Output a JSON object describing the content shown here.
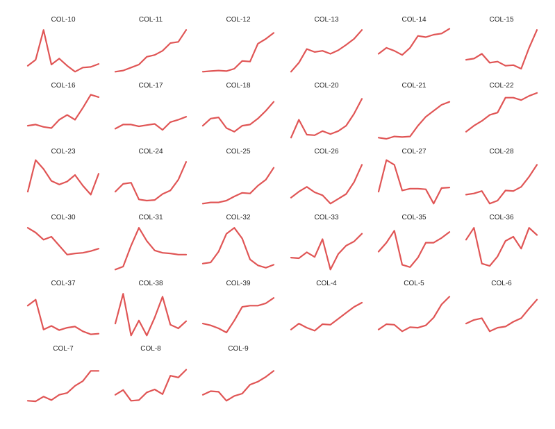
{
  "chart_data": {
    "type": "line",
    "layout": "small-multiples",
    "grid": false,
    "line_color": "#e05555",
    "panels": [
      {
        "title": "COL-10",
        "values": [
          0.2,
          0.3,
          0.8,
          0.22,
          0.32,
          0.2,
          0.1,
          0.17,
          0.18,
          0.23
        ]
      },
      {
        "title": "COL-11",
        "values": [
          0.1,
          0.12,
          0.17,
          0.22,
          0.35,
          0.38,
          0.45,
          0.58,
          0.6,
          0.8
        ]
      },
      {
        "title": "COL-12",
        "values": [
          0.1,
          0.11,
          0.12,
          0.11,
          0.15,
          0.28,
          0.27,
          0.57,
          0.65,
          0.75
        ]
      },
      {
        "title": "COL-13",
        "values": [
          0.1,
          0.25,
          0.48,
          0.43,
          0.45,
          0.4,
          0.46,
          0.55,
          0.65,
          0.8
        ]
      },
      {
        "title": "COL-14",
        "values": [
          0.4,
          0.5,
          0.45,
          0.38,
          0.5,
          0.7,
          0.68,
          0.72,
          0.74,
          0.82
        ]
      },
      {
        "title": "COL-15",
        "values": [
          0.3,
          0.32,
          0.4,
          0.25,
          0.27,
          0.2,
          0.21,
          0.15,
          0.5,
          0.8
        ]
      },
      {
        "title": "COL-16",
        "values": [
          0.3,
          0.32,
          0.28,
          0.26,
          0.4,
          0.48,
          0.4,
          0.6,
          0.82,
          0.78
        ]
      },
      {
        "title": "COL-17",
        "values": [
          0.25,
          0.32,
          0.32,
          0.29,
          0.31,
          0.33,
          0.23,
          0.36,
          0.4,
          0.45
        ]
      },
      {
        "title": "COL-18",
        "values": [
          0.3,
          0.42,
          0.44,
          0.26,
          0.2,
          0.3,
          0.32,
          0.42,
          0.55,
          0.7
        ]
      },
      {
        "title": "COL-20",
        "values": [
          0.1,
          0.4,
          0.15,
          0.14,
          0.21,
          0.16,
          0.21,
          0.3,
          0.5,
          0.75
        ]
      },
      {
        "title": "COL-21",
        "values": [
          0.1,
          0.08,
          0.12,
          0.11,
          0.12,
          0.3,
          0.45,
          0.55,
          0.65,
          0.7
        ]
      },
      {
        "title": "COL-22",
        "values": [
          0.2,
          0.3,
          0.38,
          0.48,
          0.52,
          0.77,
          0.77,
          0.73,
          0.8,
          0.85
        ]
      },
      {
        "title": "COL-23",
        "values": [
          0.3,
          0.83,
          0.68,
          0.48,
          0.42,
          0.47,
          0.58,
          0.4,
          0.25,
          0.6
        ]
      },
      {
        "title": "COL-24",
        "values": [
          0.3,
          0.43,
          0.45,
          0.17,
          0.15,
          0.16,
          0.26,
          0.32,
          0.5,
          0.8
        ]
      },
      {
        "title": "COL-25",
        "values": [
          0.1,
          0.12,
          0.12,
          0.15,
          0.22,
          0.28,
          0.27,
          0.4,
          0.5,
          0.7
        ]
      },
      {
        "title": "COL-26",
        "values": [
          0.2,
          0.3,
          0.38,
          0.29,
          0.24,
          0.1,
          0.18,
          0.26,
          0.46,
          0.75
        ]
      },
      {
        "title": "COL-27",
        "values": [
          0.3,
          0.83,
          0.75,
          0.32,
          0.35,
          0.35,
          0.34,
          0.1,
          0.36,
          0.37
        ]
      },
      {
        "title": "COL-28",
        "values": [
          0.25,
          0.27,
          0.31,
          0.1,
          0.15,
          0.32,
          0.31,
          0.38,
          0.55,
          0.75
        ]
      },
      {
        "title": "COL-30",
        "values": [
          0.8,
          0.72,
          0.6,
          0.65,
          0.5,
          0.35,
          0.37,
          0.38,
          0.41,
          0.45
        ]
      },
      {
        "title": "COL-31",
        "values": [
          0.1,
          0.15,
          0.5,
          0.8,
          0.58,
          0.42,
          0.38,
          0.37,
          0.35,
          0.35
        ]
      },
      {
        "title": "COL-32",
        "values": [
          0.2,
          0.22,
          0.4,
          0.7,
          0.8,
          0.62,
          0.27,
          0.17,
          0.13,
          0.18
        ]
      },
      {
        "title": "COL-33",
        "values": [
          0.3,
          0.29,
          0.39,
          0.31,
          0.61,
          0.1,
          0.36,
          0.5,
          0.57,
          0.7
        ]
      },
      {
        "title": "COL-35",
        "values": [
          0.4,
          0.55,
          0.75,
          0.18,
          0.14,
          0.3,
          0.55,
          0.55,
          0.63,
          0.73
        ]
      },
      {
        "title": "COL-36",
        "values": [
          0.6,
          0.8,
          0.2,
          0.16,
          0.32,
          0.58,
          0.65,
          0.45,
          0.8,
          0.68
        ]
      },
      {
        "title": "COL-37",
        "values": [
          0.6,
          0.7,
          0.2,
          0.26,
          0.19,
          0.23,
          0.25,
          0.17,
          0.12,
          0.13
        ]
      },
      {
        "title": "COL-38",
        "values": [
          0.3,
          0.8,
          0.1,
          0.35,
          0.1,
          0.4,
          0.75,
          0.28,
          0.22,
          0.34
        ]
      },
      {
        "title": "COL-39",
        "values": [
          0.3,
          0.27,
          0.22,
          0.15,
          0.35,
          0.58,
          0.6,
          0.6,
          0.64,
          0.73
        ]
      },
      {
        "title": "COL-4",
        "values": [
          0.2,
          0.3,
          0.23,
          0.18,
          0.29,
          0.28,
          0.38,
          0.48,
          0.58,
          0.65
        ]
      },
      {
        "title": "COL-5",
        "values": [
          0.2,
          0.29,
          0.28,
          0.17,
          0.24,
          0.23,
          0.27,
          0.4,
          0.62,
          0.75
        ]
      },
      {
        "title": "COL-6",
        "values": [
          0.3,
          0.36,
          0.39,
          0.17,
          0.23,
          0.25,
          0.33,
          0.39,
          0.55,
          0.7
        ]
      },
      {
        "title": "COL-7",
        "values": [
          0.1,
          0.09,
          0.17,
          0.11,
          0.2,
          0.23,
          0.35,
          0.43,
          0.6,
          0.6
        ]
      },
      {
        "title": "COL-8",
        "values": [
          0.2,
          0.28,
          0.1,
          0.11,
          0.24,
          0.29,
          0.21,
          0.52,
          0.49,
          0.62
        ]
      },
      {
        "title": "COL-9",
        "values": [
          0.2,
          0.26,
          0.25,
          0.1,
          0.18,
          0.22,
          0.37,
          0.42,
          0.5,
          0.6
        ]
      }
    ]
  }
}
